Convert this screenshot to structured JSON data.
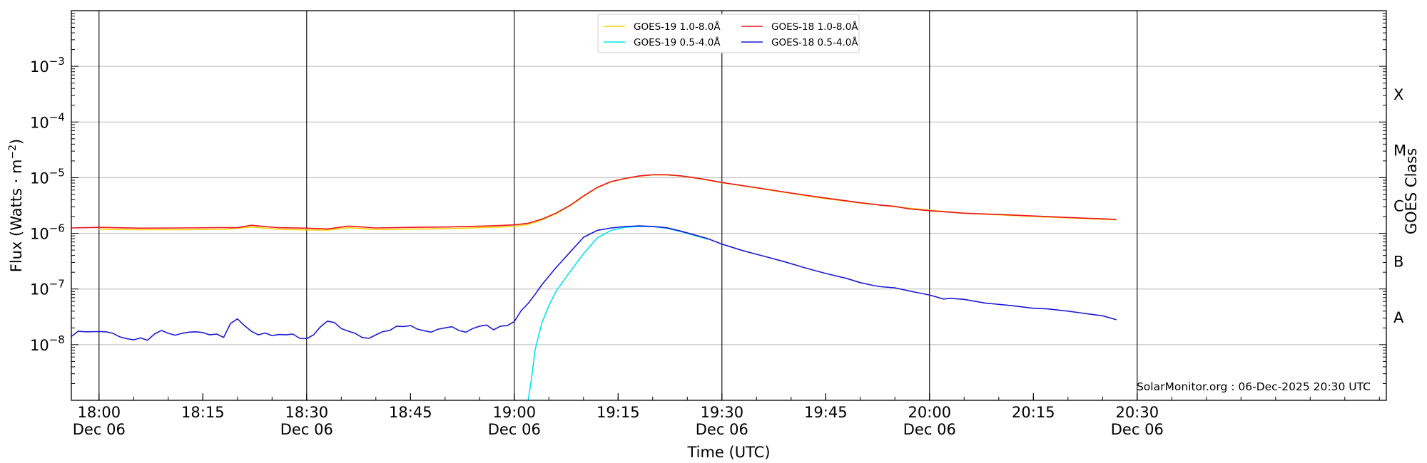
{
  "chart_data": {
    "type": "line",
    "ylabel": "Flux (Watts · m",
    "ylabel_sup": "−2",
    "ylabel_tail": ")",
    "xlabel": "Time (UTC)",
    "y2label": "GOES Class",
    "credit": "SolarMonitor.org : 06-Dec-2025 20:30 UTC",
    "y_scale": "log",
    "ylim": [
      1e-09,
      0.01
    ],
    "xlim": [
      "17:56",
      "21:06"
    ],
    "grid": "horizontal at decades",
    "legend_placement": "upper-center",
    "x_ticks": [
      {
        "time": "18:00",
        "label": "18:00",
        "sub": "Dec 06"
      },
      {
        "time": "18:15",
        "label": "18:15",
        "sub": ""
      },
      {
        "time": "18:30",
        "label": "18:30",
        "sub": "Dec 06"
      },
      {
        "time": "18:45",
        "label": "18:45",
        "sub": ""
      },
      {
        "time": "19:00",
        "label": "19:00",
        "sub": "Dec 06"
      },
      {
        "time": "19:15",
        "label": "19:15",
        "sub": ""
      },
      {
        "time": "19:30",
        "label": "19:30",
        "sub": "Dec 06"
      },
      {
        "time": "19:45",
        "label": "19:45",
        "sub": ""
      },
      {
        "time": "20:00",
        "label": "20:00",
        "sub": "Dec 06"
      },
      {
        "time": "20:15",
        "label": "20:15",
        "sub": ""
      },
      {
        "time": "20:30",
        "label": "20:30",
        "sub": "Dec 06"
      }
    ],
    "day_lines": [
      "18:00",
      "18:30",
      "19:00",
      "19:30",
      "20:00",
      "20:30"
    ],
    "y_ticks": [
      {
        "exp": -8,
        "label": "10",
        "sup": "−8"
      },
      {
        "exp": -7,
        "label": "10",
        "sup": "−7"
      },
      {
        "exp": -6,
        "label": "10",
        "sup": "−6"
      },
      {
        "exp": -5,
        "label": "10",
        "sup": "−5"
      },
      {
        "exp": -4,
        "label": "10",
        "sup": "−4"
      },
      {
        "exp": -3,
        "label": "10",
        "sup": "−3"
      }
    ],
    "goes_classes": [
      {
        "label": "A",
        "exp": -7.5
      },
      {
        "label": "B",
        "exp": -6.5
      },
      {
        "label": "C",
        "exp": -5.5
      },
      {
        "label": "M",
        "exp": -4.5
      },
      {
        "label": "X",
        "exp": -3.5
      }
    ],
    "series": [
      {
        "name": "GOES-19 1.0-8.0Å",
        "color": "#ffd000",
        "x": [
          "18:00",
          "18:06",
          "18:12",
          "18:18",
          "18:22",
          "18:26",
          "18:30",
          "18:33",
          "18:36",
          "18:40",
          "18:45",
          "18:50",
          "18:55",
          "18:58",
          "19:00",
          "19:02",
          "19:04",
          "19:06",
          "19:08",
          "19:10",
          "19:12",
          "19:14",
          "19:16",
          "19:18",
          "19:20",
          "19:22",
          "19:24",
          "19:26",
          "19:28",
          "19:30",
          "19:35",
          "19:40",
          "19:45",
          "19:50",
          "19:55",
          "20:00",
          "20:05",
          "20:10",
          "20:15",
          "20:20",
          "20:25",
          "20:27"
        ],
        "values": [
          1.18e-06,
          1.16e-06,
          1.16e-06,
          1.18e-06,
          1.3e-06,
          1.18e-06,
          1.15e-06,
          1.14e-06,
          1.26e-06,
          1.17e-06,
          1.19e-06,
          1.21e-06,
          1.26e-06,
          1.3e-06,
          1.33e-06,
          1.45e-06,
          1.75e-06,
          2.25e-06,
          3.1e-06,
          4.6e-06,
          6.6e-06,
          8.4e-06,
          9.6e-06,
          1.06e-05,
          1.12e-05,
          1.12e-05,
          1.07e-05,
          9.9e-06,
          9e-06,
          8.1e-06,
          6.5e-06,
          5.2e-06,
          4.2e-06,
          3.5e-06,
          3e-06,
          2.6e-06,
          2.3e-06,
          2.15e-06,
          2e-06,
          1.9e-06,
          1.78e-06,
          1.75e-06
        ]
      },
      {
        "name": "GOES-18 1.0-8.0Å",
        "color": "#e8141e",
        "x": [
          "17:56",
          "18:00",
          "18:06",
          "18:12",
          "18:18",
          "18:20",
          "18:22",
          "18:24",
          "18:26",
          "18:30",
          "18:33",
          "18:36",
          "18:40",
          "18:45",
          "18:50",
          "18:55",
          "18:58",
          "19:00",
          "19:02",
          "19:04",
          "19:06",
          "19:08",
          "19:10",
          "19:12",
          "19:14",
          "19:16",
          "19:18",
          "19:20",
          "19:22",
          "19:24",
          "19:26",
          "19:28",
          "19:30",
          "19:35",
          "19:40",
          "19:45",
          "19:50",
          "19:53",
          "19:55",
          "19:57",
          "20:00",
          "20:05",
          "20:10",
          "20:15",
          "20:20",
          "20:25",
          "20:27"
        ],
        "values": [
          1.25e-06,
          1.28e-06,
          1.24e-06,
          1.25e-06,
          1.27e-06,
          1.26e-06,
          1.4e-06,
          1.32e-06,
          1.26e-06,
          1.24e-06,
          1.2e-06,
          1.35e-06,
          1.25e-06,
          1.28e-06,
          1.3e-06,
          1.34e-06,
          1.38e-06,
          1.42e-06,
          1.52e-06,
          1.8e-06,
          2.3e-06,
          3.15e-06,
          4.7e-06,
          6.7e-06,
          8.5e-06,
          9.7e-06,
          1.07e-05,
          1.13e-05,
          1.13e-05,
          1.08e-05,
          1e-05,
          9.1e-06,
          8.2e-06,
          6.6e-06,
          5.3e-06,
          4.3e-06,
          3.55e-06,
          3.2e-06,
          3.05e-06,
          2.75e-06,
          2.55e-06,
          2.3e-06,
          2.18e-06,
          2.05e-06,
          1.93e-06,
          1.82e-06,
          1.78e-06
        ]
      },
      {
        "name": "GOES-19 0.5-4.0Å",
        "color": "#00e5f2",
        "x": [
          "19:02",
          "19:02.5",
          "19:03",
          "19:04",
          "19:05",
          "19:06",
          "19:08",
          "19:10",
          "19:12",
          "19:14",
          "19:16",
          "19:18",
          "19:20",
          "19:22",
          "19:24",
          "19:26",
          "19:28"
        ],
        "values": [
          1e-09,
          2.5e-09,
          8e-09,
          2.5e-08,
          5e-08,
          9e-08,
          2e-07,
          4.3e-07,
          8.3e-07,
          1.13e-06,
          1.28e-06,
          1.33e-06,
          1.32e-06,
          1.23e-06,
          1.08e-06,
          9.2e-07,
          7.8e-07
        ]
      },
      {
        "name": "GOES-18 0.5-4.0Å",
        "color": "#1a1ad6",
        "x": [
          "17:56",
          "17:57",
          "17:58",
          "18:00",
          "18:01",
          "18:02",
          "18:03",
          "18:04",
          "18:05",
          "18:06",
          "18:07",
          "18:08",
          "18:09",
          "18:10",
          "18:11",
          "18:12",
          "18:13",
          "18:14",
          "18:15",
          "18:16",
          "18:17",
          "18:18",
          "18:19",
          "18:20",
          "18:21",
          "18:22",
          "18:23",
          "18:24",
          "18:25",
          "18:26",
          "18:27",
          "18:28",
          "18:29",
          "18:30",
          "18:31",
          "18:32",
          "18:33",
          "18:34",
          "18:35",
          "18:36",
          "18:37",
          "18:38",
          "18:39",
          "18:40",
          "18:41",
          "18:42",
          "18:43",
          "18:44",
          "18:45",
          "18:46",
          "18:47",
          "18:48",
          "18:49",
          "18:50",
          "18:51",
          "18:52",
          "18:53",
          "18:54",
          "18:55",
          "18:56",
          "18:57",
          "18:58",
          "18:59",
          "19:00",
          "19:01",
          "19:02",
          "19:03",
          "19:04",
          "19:05",
          "19:06",
          "19:08",
          "19:10",
          "19:12",
          "19:14",
          "19:16",
          "19:18",
          "19:20",
          "19:22",
          "19:24",
          "19:26",
          "19:28",
          "19:30",
          "19:33",
          "19:36",
          "19:39",
          "19:42",
          "19:45",
          "19:48",
          "19:50",
          "19:52",
          "19:53",
          "19:55",
          "19:58",
          "20:00",
          "20:02",
          "20:03",
          "20:05",
          "20:08",
          "20:10",
          "20:12",
          "20:15",
          "20:17",
          "20:20",
          "20:22",
          "20:25",
          "20:27"
        ],
        "values": [
          1.4e-08,
          1.75e-08,
          1.7e-08,
          1.72e-08,
          1.7e-08,
          1.6e-08,
          1.38e-08,
          1.28e-08,
          1.22e-08,
          1.32e-08,
          1.2e-08,
          1.55e-08,
          1.8e-08,
          1.6e-08,
          1.48e-08,
          1.6e-08,
          1.68e-08,
          1.7e-08,
          1.65e-08,
          1.5e-08,
          1.55e-08,
          1.35e-08,
          2.4e-08,
          2.9e-08,
          2.2e-08,
          1.75e-08,
          1.5e-08,
          1.62e-08,
          1.45e-08,
          1.52e-08,
          1.5e-08,
          1.55e-08,
          1.3e-08,
          1.28e-08,
          1.5e-08,
          2.1e-08,
          2.65e-08,
          2.5e-08,
          1.95e-08,
          1.75e-08,
          1.6e-08,
          1.35e-08,
          1.3e-08,
          1.5e-08,
          1.72e-08,
          1.8e-08,
          2.15e-08,
          2.12e-08,
          2.2e-08,
          1.9e-08,
          1.78e-08,
          1.68e-08,
          1.9e-08,
          2e-08,
          2.1e-08,
          1.8e-08,
          1.68e-08,
          1.95e-08,
          2.15e-08,
          2.25e-08,
          1.85e-08,
          2.15e-08,
          2.2e-08,
          2.6e-08,
          4.1e-08,
          5.5e-08,
          8e-08,
          1.2e-07,
          1.7e-07,
          2.4e-07,
          4.5e-07,
          8.5e-07,
          1.13e-06,
          1.25e-06,
          1.32e-06,
          1.36e-06,
          1.33e-06,
          1.26e-06,
          1.1e-06,
          9.4e-07,
          8e-07,
          6.4e-07,
          4.9e-07,
          3.9e-07,
          3.1e-07,
          2.4e-07,
          1.9e-07,
          1.55e-07,
          1.3e-07,
          1.15e-07,
          1.1e-07,
          1.05e-07,
          8.7e-08,
          7.8e-08,
          6.6e-08,
          6.8e-08,
          6.5e-08,
          5.6e-08,
          5.3e-08,
          5e-08,
          4.5e-08,
          4.4e-08,
          4e-08,
          3.7e-08,
          3.3e-08,
          2.8e-08
        ]
      }
    ]
  }
}
